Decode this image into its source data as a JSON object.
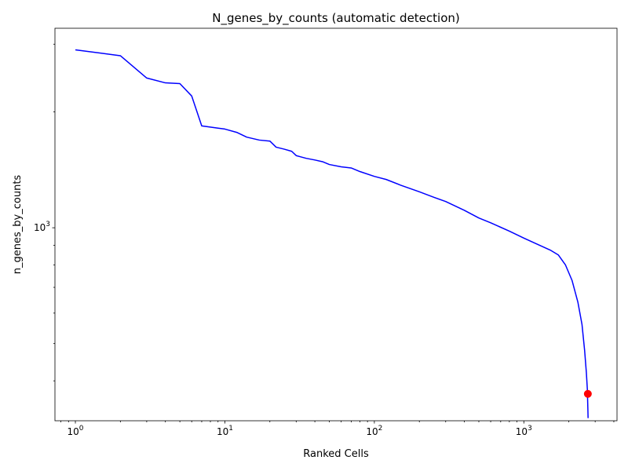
{
  "chart_data": {
    "type": "line",
    "title": "N_genes_by_counts (automatic detection)",
    "xlabel": "Ranked Cells",
    "ylabel": "n_genes_by_counts",
    "xscale": "log",
    "yscale": "log",
    "xlim": [
      0.73,
      4200
    ],
    "ylim": [
      315,
      3300
    ],
    "x_ticks": [
      {
        "value": 1,
        "base": "10",
        "exp": "0"
      },
      {
        "value": 10,
        "base": "10",
        "exp": "1"
      },
      {
        "value": 100,
        "base": "10",
        "exp": "2"
      },
      {
        "value": 1000,
        "base": "10",
        "exp": "3"
      }
    ],
    "y_ticks": [
      {
        "value": 1000,
        "base": "10",
        "exp": "3"
      }
    ],
    "grid": false,
    "series": [
      {
        "color": "#0000ff",
        "points": [
          [
            1,
            2900
          ],
          [
            2,
            2800
          ],
          [
            3,
            2450
          ],
          [
            4,
            2380
          ],
          [
            5,
            2370
          ],
          [
            6,
            2200
          ],
          [
            7,
            1840
          ],
          [
            9,
            1815
          ],
          [
            10,
            1805
          ],
          [
            12,
            1770
          ],
          [
            14,
            1720
          ],
          [
            17,
            1690
          ],
          [
            20,
            1680
          ],
          [
            22,
            1620
          ],
          [
            25,
            1600
          ],
          [
            28,
            1580
          ],
          [
            30,
            1540
          ],
          [
            35,
            1515
          ],
          [
            40,
            1500
          ],
          [
            45,
            1485
          ],
          [
            50,
            1460
          ],
          [
            60,
            1440
          ],
          [
            70,
            1430
          ],
          [
            80,
            1400
          ],
          [
            100,
            1360
          ],
          [
            120,
            1335
          ],
          [
            150,
            1290
          ],
          [
            200,
            1240
          ],
          [
            250,
            1200
          ],
          [
            300,
            1170
          ],
          [
            400,
            1110
          ],
          [
            500,
            1060
          ],
          [
            600,
            1030
          ],
          [
            800,
            980
          ],
          [
            1000,
            940
          ],
          [
            1200,
            910
          ],
          [
            1500,
            875
          ],
          [
            1700,
            850
          ],
          [
            1900,
            800
          ],
          [
            2100,
            730
          ],
          [
            2300,
            640
          ],
          [
            2450,
            560
          ],
          [
            2550,
            480
          ],
          [
            2620,
            420
          ],
          [
            2660,
            380
          ],
          [
            2680,
            340
          ],
          [
            2690,
            320
          ]
        ]
      }
    ],
    "marker": {
      "x": 2680,
      "y": 370,
      "color": "#ff0000"
    }
  }
}
